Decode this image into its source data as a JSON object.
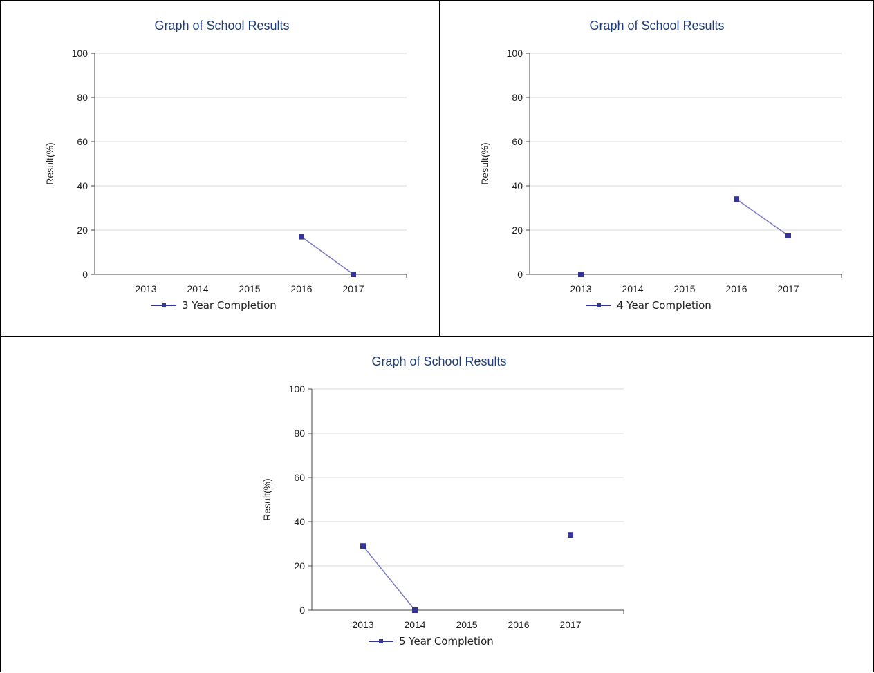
{
  "style": {
    "series_color": "#353597",
    "grid_color": "#d9d9d9",
    "title_color": "#1f3d7a"
  },
  "chart_data": [
    {
      "type": "line",
      "title": "Graph of School Results",
      "ylabel": "Result(%)",
      "xlabel": "",
      "categories": [
        "2013",
        "2014",
        "2015",
        "2016",
        "2017"
      ],
      "ylim": [
        0,
        100
      ],
      "yticks": [
        "0",
        "20",
        "40",
        "60",
        "80",
        "100"
      ],
      "grid": true,
      "legend_position": "bottom",
      "series": [
        {
          "name": "3 Year Completion",
          "values": [
            null,
            null,
            null,
            17,
            0
          ]
        }
      ]
    },
    {
      "type": "line",
      "title": "Graph of School Results",
      "ylabel": "Result(%)",
      "xlabel": "",
      "categories": [
        "2013",
        "2014",
        "2015",
        "2016",
        "2017"
      ],
      "ylim": [
        0,
        100
      ],
      "yticks": [
        "0",
        "20",
        "40",
        "60",
        "80",
        "100"
      ],
      "grid": true,
      "legend_position": "bottom",
      "series": [
        {
          "name": "4 Year Completion",
          "values": [
            0,
            null,
            null,
            34,
            17.5
          ]
        }
      ]
    },
    {
      "type": "line",
      "title": "Graph of School Results",
      "ylabel": "Result(%)",
      "xlabel": "",
      "categories": [
        "2013",
        "2014",
        "2015",
        "2016",
        "2017"
      ],
      "ylim": [
        0,
        100
      ],
      "yticks": [
        "0",
        "20",
        "40",
        "60",
        "80",
        "100"
      ],
      "grid": true,
      "legend_position": "bottom",
      "series": [
        {
          "name": "5 Year Completion",
          "values": [
            29,
            0,
            null,
            null,
            34
          ]
        }
      ]
    }
  ]
}
